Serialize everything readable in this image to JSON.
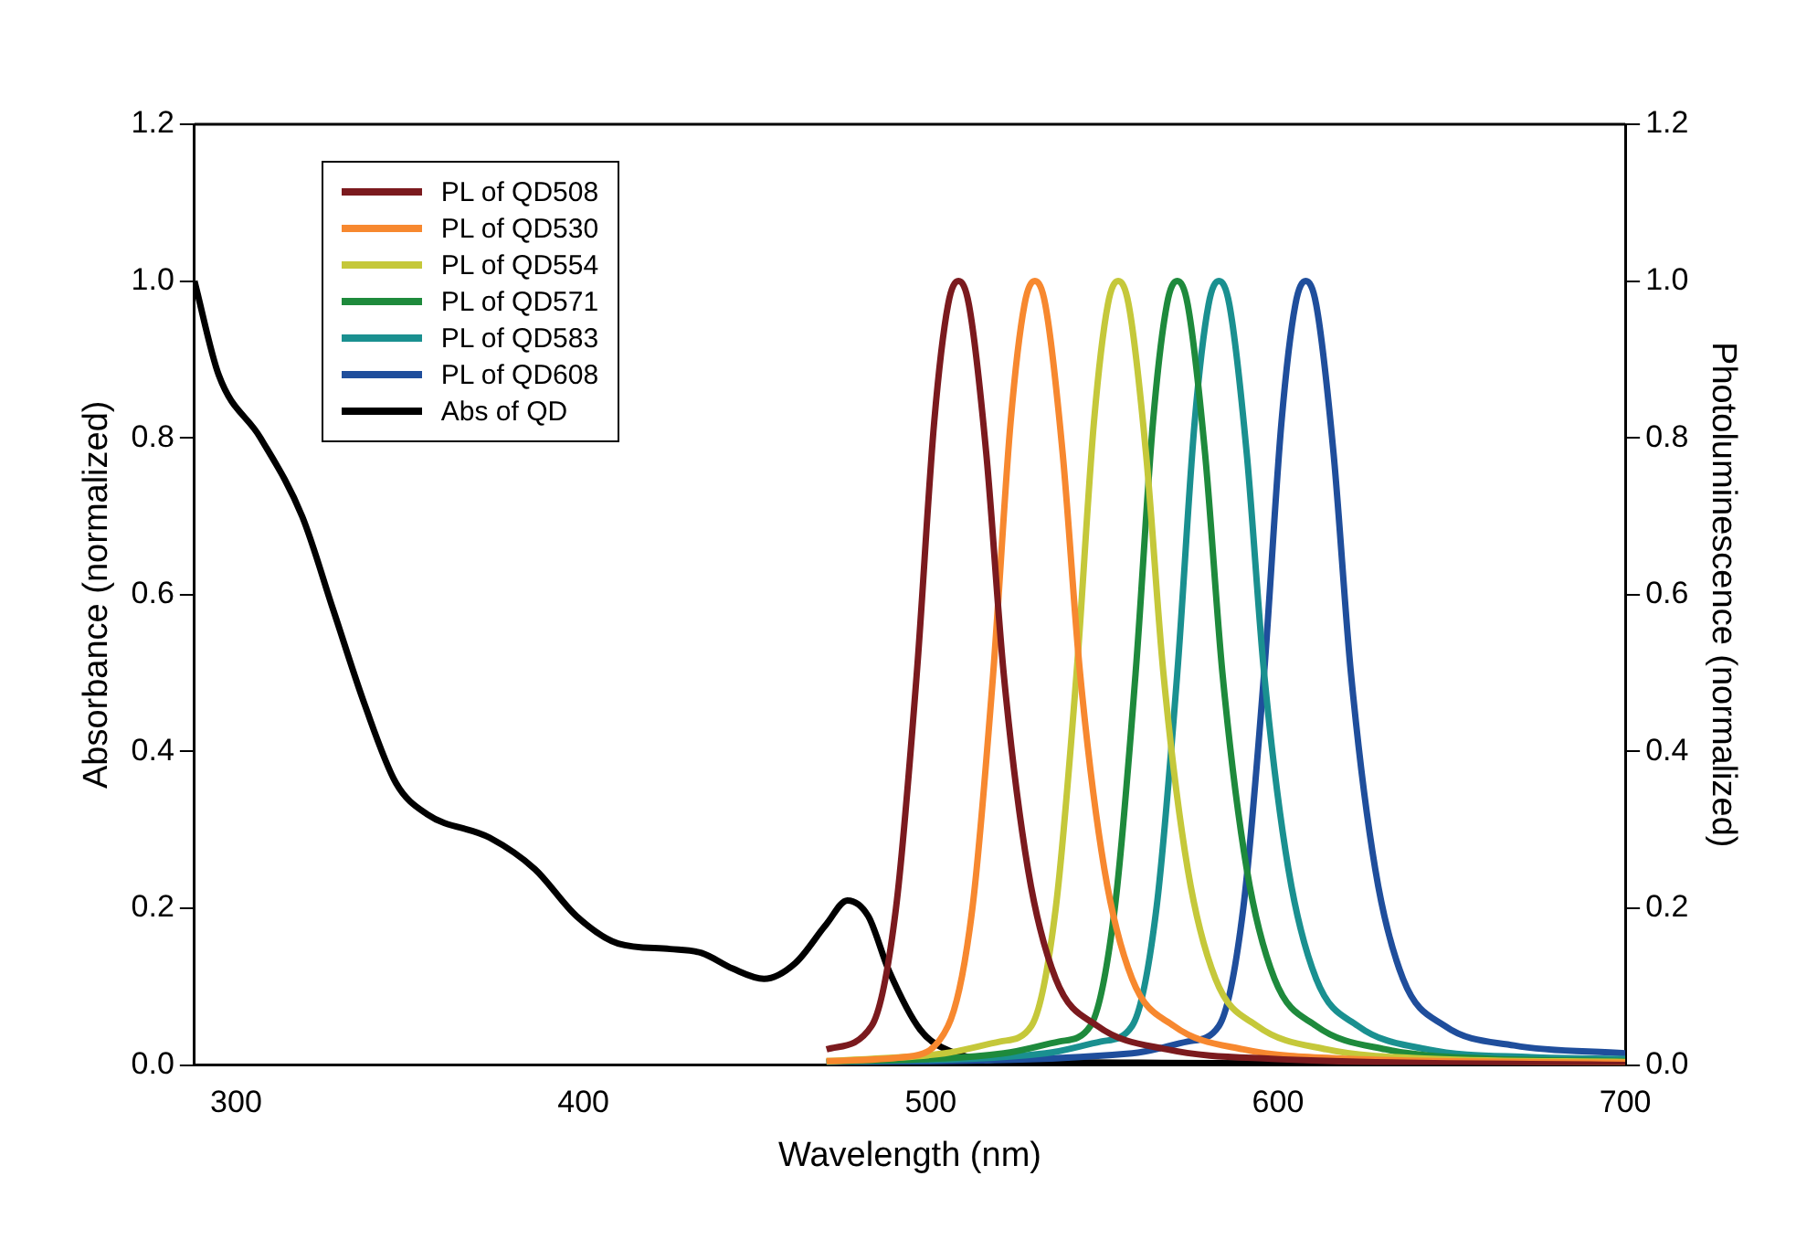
{
  "chart_data": {
    "type": "line",
    "xlabel": "Wavelength (nm)",
    "ylabel": "Absorbance (normalized)",
    "y2label": "Photoluminescence (normalized)",
    "xlim": [
      288,
      700
    ],
    "xticks": [
      300,
      400,
      500,
      600,
      700
    ],
    "ylim": [
      0,
      1.2
    ],
    "yticks": [
      {
        "value": 0,
        "label": "0.0"
      },
      {
        "value": 0.2,
        "label": "0.2"
      },
      {
        "value": 0.4,
        "label": "0.4"
      },
      {
        "value": 0.6,
        "label": "0.6"
      },
      {
        "value": 0.8,
        "label": "0.8"
      },
      {
        "value": 1,
        "label": "1.0"
      },
      {
        "value": 1.2,
        "label": "1.2"
      }
    ],
    "y2lim": [
      0,
      1.2
    ],
    "y2ticks": [
      {
        "value": 0,
        "label": "0.0"
      },
      {
        "value": 0.2,
        "label": "0.2"
      },
      {
        "value": 0.4,
        "label": "0.4"
      },
      {
        "value": 0.6,
        "label": "0.6"
      },
      {
        "value": 0.8,
        "label": "0.8"
      },
      {
        "value": 1,
        "label": "1.0"
      },
      {
        "value": 1.2,
        "label": "1.2"
      }
    ],
    "grid": false,
    "legend": "top left",
    "marker": "none",
    "line_style": "solid",
    "series": [
      {
        "name": "PL of QD508",
        "color": "#7b1a1e",
        "x": [
          470,
          483,
          490,
          496,
          501,
          505,
          508,
          511,
          516,
          521,
          528,
          536,
          548,
          568,
          598,
          700
        ],
        "values": [
          0.02,
          0.05,
          0.2,
          0.5,
          0.82,
          0.97,
          1.0,
          0.97,
          0.78,
          0.5,
          0.25,
          0.11,
          0.05,
          0.02,
          0.008,
          0.0
        ]
      },
      {
        "name": "PL of QD530",
        "color": "#f7882f",
        "x": [
          470,
          492,
          505,
          512,
          518,
          523,
          527,
          530,
          533,
          538,
          543,
          550,
          558,
          570,
          590,
          620,
          700
        ],
        "values": [
          0.005,
          0.01,
          0.05,
          0.2,
          0.5,
          0.82,
          0.97,
          1.0,
          0.97,
          0.78,
          0.5,
          0.25,
          0.11,
          0.05,
          0.02,
          0.008,
          0.003
        ]
      },
      {
        "name": "PL of QD554",
        "color": "#c5c83a",
        "x": [
          470,
          504,
          520,
          529,
          536,
          542,
          547,
          551,
          554,
          557,
          562,
          567,
          574,
          582,
          594,
          614,
          644,
          700
        ],
        "values": [
          0.005,
          0.015,
          0.03,
          0.05,
          0.2,
          0.5,
          0.82,
          0.97,
          1.0,
          0.97,
          0.78,
          0.5,
          0.25,
          0.11,
          0.05,
          0.02,
          0.008,
          0.004
        ]
      },
      {
        "name": "PL of QD571",
        "color": "#1e8a3c",
        "x": [
          470,
          521,
          537,
          546,
          553,
          559,
          564,
          568,
          571,
          574,
          579,
          584,
          591,
          599,
          611,
          631,
          661,
          700
        ],
        "values": [
          0.004,
          0.015,
          0.03,
          0.05,
          0.2,
          0.5,
          0.82,
          0.97,
          1.0,
          0.97,
          0.78,
          0.5,
          0.25,
          0.11,
          0.05,
          0.02,
          0.008,
          0.005
        ]
      },
      {
        "name": "PL of QD583",
        "color": "#1a9090",
        "x": [
          470,
          533,
          549,
          558,
          565,
          571,
          576,
          580,
          583,
          586,
          591,
          596,
          603,
          611,
          623,
          643,
          673,
          700
        ],
        "values": [
          0.004,
          0.015,
          0.03,
          0.05,
          0.2,
          0.5,
          0.82,
          0.97,
          1.0,
          0.97,
          0.78,
          0.5,
          0.25,
          0.11,
          0.05,
          0.02,
          0.01,
          0.008
        ]
      },
      {
        "name": "PL of QD608",
        "color": "#1f4e9c",
        "x": [
          470,
          558,
          574,
          583,
          590,
          596,
          601,
          605,
          608,
          611,
          616,
          621,
          628,
          636,
          648,
          668,
          700
        ],
        "values": [
          0.003,
          0.015,
          0.03,
          0.05,
          0.2,
          0.5,
          0.82,
          0.97,
          1.0,
          0.97,
          0.78,
          0.5,
          0.25,
          0.11,
          0.05,
          0.025,
          0.015
        ]
      },
      {
        "name": "Abs of QD",
        "color": "#000000",
        "x": [
          288,
          295,
          307,
          319,
          328,
          337,
          346,
          355,
          373,
          386,
          398,
          410,
          425,
          434,
          443,
          452,
          461,
          470,
          476,
          482,
          488,
          497,
          506,
          524,
          560,
          700
        ],
        "values": [
          1.0,
          0.88,
          0.8,
          0.7,
          0.58,
          0.46,
          0.36,
          0.32,
          0.29,
          0.25,
          0.19,
          0.155,
          0.148,
          0.143,
          0.123,
          0.11,
          0.13,
          0.18,
          0.21,
          0.19,
          0.12,
          0.045,
          0.017,
          0.005,
          0.003,
          0.0
        ]
      }
    ]
  }
}
